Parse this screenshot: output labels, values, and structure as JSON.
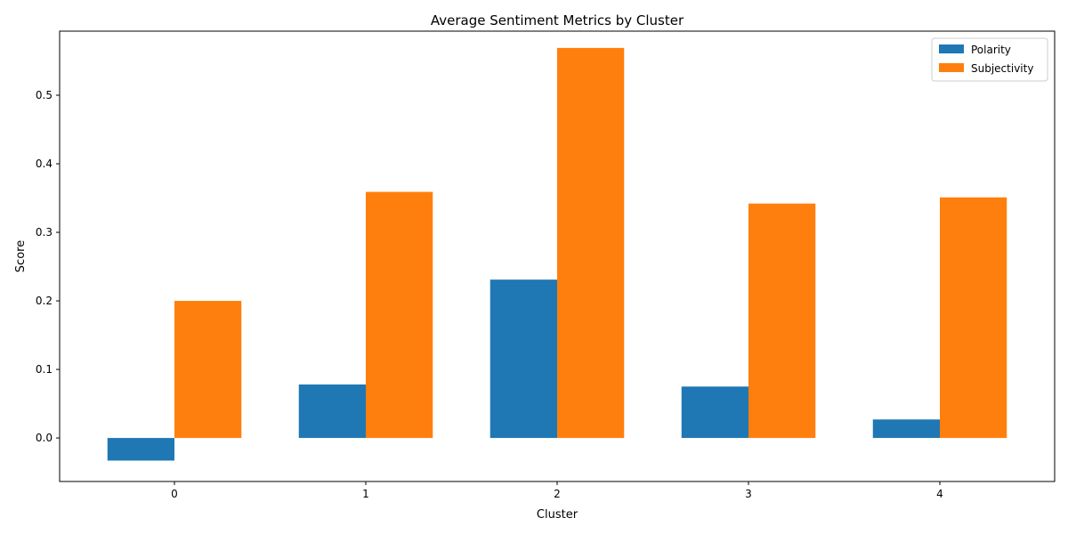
{
  "chart_data": {
    "type": "bar",
    "title": "Average Sentiment Metrics by Cluster",
    "xlabel": "Cluster",
    "ylabel": "Score",
    "categories": [
      "0",
      "1",
      "2",
      "3",
      "4"
    ],
    "series": [
      {
        "name": "Polarity",
        "color": "#1f77b4",
        "values": [
          -0.033,
          0.078,
          0.231,
          0.075,
          0.027
        ]
      },
      {
        "name": "Subjectivity",
        "color": "#ff7f0e",
        "values": [
          0.2,
          0.359,
          0.569,
          0.342,
          0.351
        ]
      }
    ],
    "ylim": [
      -0.0635,
      0.5935
    ],
    "yticks": [
      0.0,
      0.1,
      0.2,
      0.3,
      0.4,
      0.5
    ],
    "ytick_labels": [
      "0.0",
      "0.1",
      "0.2",
      "0.3",
      "0.4",
      "0.5"
    ],
    "grid": false,
    "legend_position": "top-right"
  }
}
